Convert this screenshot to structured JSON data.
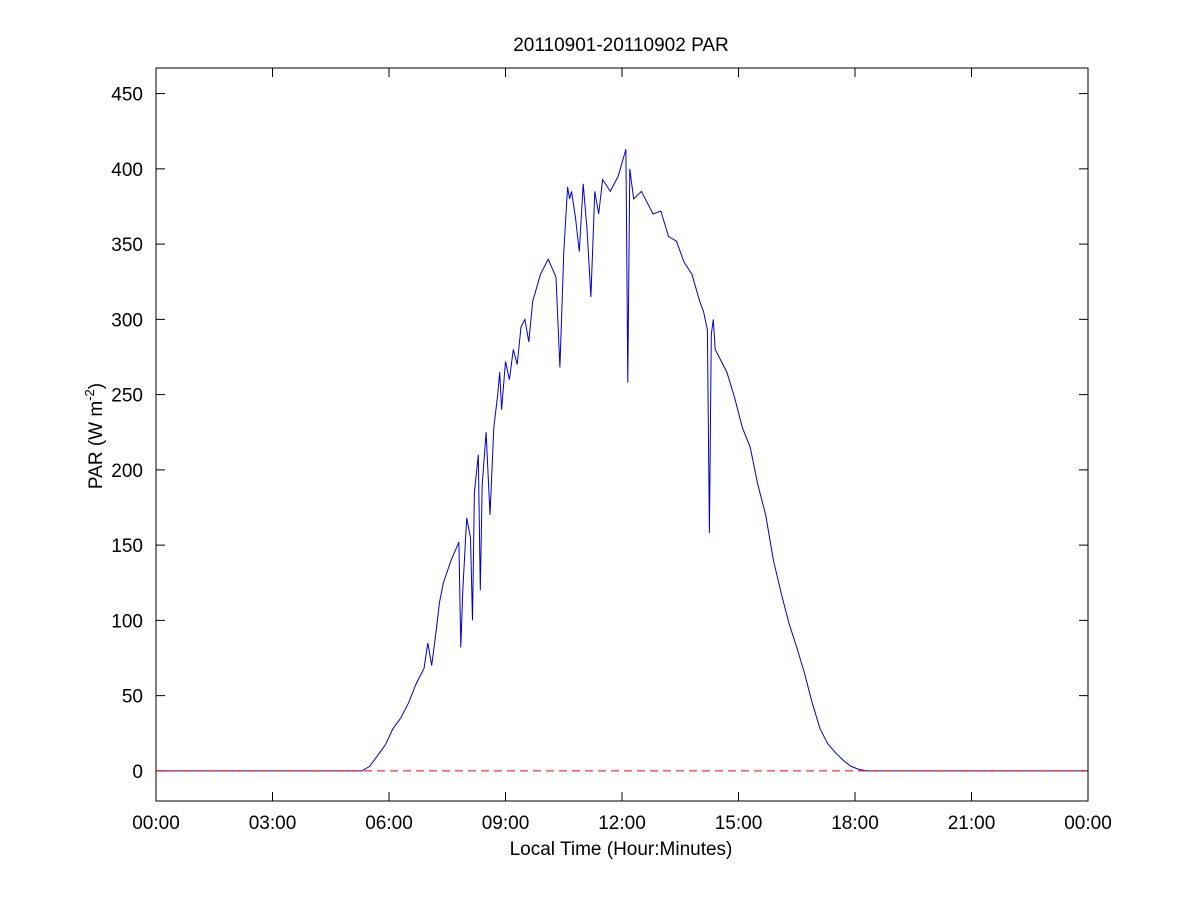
{
  "chart_data": {
    "type": "line",
    "title": "20110901-20110902 PAR",
    "xlabel": "Local Time (Hour:Minutes)",
    "ylabel": {
      "main": "PAR (W m",
      "superscript": "-2",
      "close": ")"
    },
    "xlim": [
      0,
      24
    ],
    "ylim": [
      -20,
      467
    ],
    "x_ticks": [
      0,
      3,
      6,
      9,
      12,
      15,
      18,
      21,
      24
    ],
    "x_tick_labels": [
      "00:00",
      "03:00",
      "06:00",
      "09:00",
      "12:00",
      "15:00",
      "18:00",
      "21:00",
      "00:00"
    ],
    "y_ticks": [
      0,
      50,
      100,
      150,
      200,
      250,
      300,
      350,
      400,
      450
    ],
    "y_tick_labels": [
      "0",
      "50",
      "100",
      "150",
      "200",
      "250",
      "300",
      "350",
      "400",
      "450"
    ],
    "grid": false,
    "series": [
      {
        "color": "#0000cc",
        "style": "solid",
        "x_unit": "hours",
        "x": [
          0,
          5.3,
          5.5,
          5.7,
          5.9,
          6.1,
          6.3,
          6.5,
          6.7,
          6.9,
          7.0,
          7.1,
          7.2,
          7.3,
          7.4,
          7.6,
          7.8,
          7.85,
          7.9,
          8.0,
          8.1,
          8.15,
          8.2,
          8.3,
          8.35,
          8.4,
          8.5,
          8.6,
          8.7,
          8.8,
          8.85,
          8.9,
          9.0,
          9.1,
          9.2,
          9.3,
          9.4,
          9.5,
          9.6,
          9.7,
          9.9,
          10.1,
          10.3,
          10.4,
          10.5,
          10.6,
          10.65,
          10.7,
          10.8,
          10.9,
          11.0,
          11.1,
          11.2,
          11.3,
          11.4,
          11.5,
          11.7,
          11.9,
          12.1,
          12.15,
          12.2,
          12.25,
          12.3,
          12.5,
          12.8,
          13.0,
          13.2,
          13.4,
          13.6,
          13.8,
          14.0,
          14.1,
          14.2,
          14.25,
          14.3,
          14.35,
          14.4,
          14.5,
          14.7,
          14.9,
          15.1,
          15.3,
          15.5,
          15.7,
          15.9,
          16.1,
          16.3,
          16.5,
          16.7,
          16.9,
          17.1,
          17.3,
          17.5,
          17.7,
          17.9,
          18.1,
          18.3,
          18.5,
          18.6,
          19.0,
          24.0
        ],
        "y": [
          0,
          0,
          3,
          10,
          17,
          28,
          35,
          45,
          58,
          68,
          85,
          70,
          90,
          112,
          125,
          140,
          152,
          82,
          120,
          168,
          155,
          100,
          185,
          210,
          120,
          190,
          225,
          170,
          228,
          250,
          265,
          240,
          272,
          260,
          280,
          270,
          295,
          300,
          285,
          312,
          330,
          340,
          328,
          268,
          345,
          388,
          380,
          385,
          368,
          345,
          390,
          360,
          315,
          385,
          370,
          393,
          385,
          395,
          413,
          258,
          400,
          390,
          380,
          385,
          370,
          372,
          355,
          352,
          338,
          330,
          312,
          305,
          293,
          158,
          290,
          300,
          280,
          275,
          265,
          248,
          228,
          215,
          190,
          170,
          140,
          118,
          98,
          82,
          65,
          45,
          28,
          18,
          12,
          7,
          3,
          1,
          0,
          0,
          0,
          0,
          0
        ]
      },
      {
        "color": "#ff0000",
        "style": "dashed",
        "x_unit": "hours",
        "x": [
          0,
          24
        ],
        "y": [
          0,
          0
        ]
      }
    ]
  }
}
